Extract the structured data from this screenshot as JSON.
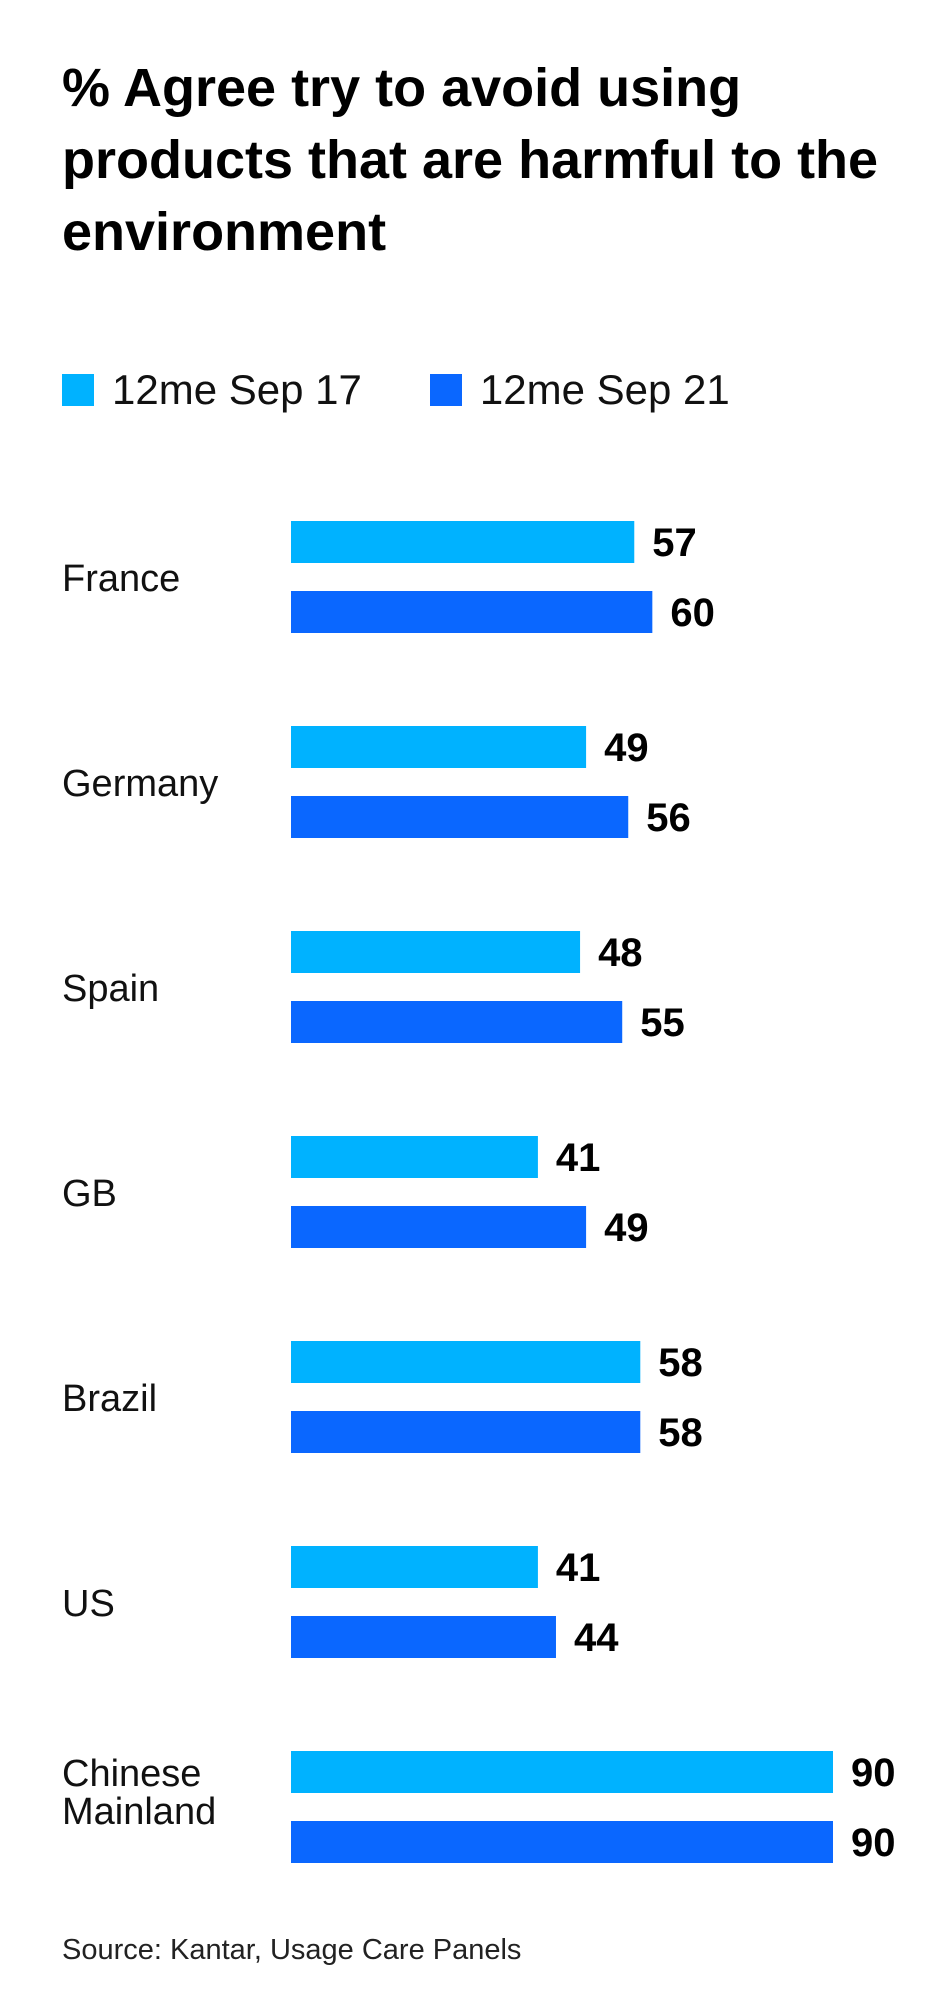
{
  "chart_data": {
    "type": "bar",
    "orientation": "horizontal",
    "title": "% Agree try to avoid using products that are harmful to the environment",
    "categories": [
      "France",
      "Germany",
      "Spain",
      "GB",
      "Brazil",
      "US",
      "Chinese Mainland"
    ],
    "series": [
      {
        "name": "12me Sep 17",
        "color": "#00B2FF",
        "values": [
          57,
          49,
          48,
          41,
          58,
          41,
          90
        ]
      },
      {
        "name": "12me Sep 21",
        "color": "#0A67FF",
        "values": [
          60,
          56,
          55,
          49,
          58,
          44,
          90
        ]
      }
    ],
    "data_labels": true,
    "legend_position": "top-left",
    "grid": false,
    "xlim": [
      0,
      100
    ],
    "source": "Source: Kantar, Usage Care Panels"
  }
}
